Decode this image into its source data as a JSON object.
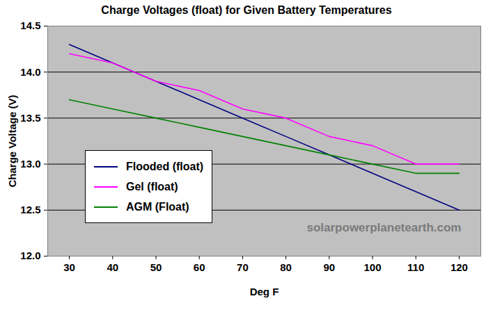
{
  "chart_data": {
    "type": "line",
    "title": "Charge Voltages (float) for Given Battery Temperatures",
    "x_label": "Deg F",
    "y_label": "Charge Voltage (V)",
    "x": [
      30,
      40,
      50,
      60,
      70,
      80,
      90,
      100,
      110,
      120
    ],
    "series": [
      {
        "name": "Flooded (float)",
        "color": "#000080",
        "values": [
          14.3,
          14.1,
          13.9,
          13.7,
          13.5,
          13.3,
          13.1,
          12.9,
          12.7,
          12.5
        ]
      },
      {
        "name": "Gel (float)",
        "color": "#ff00ff",
        "values": [
          14.2,
          14.1,
          13.9,
          13.8,
          13.6,
          13.5,
          13.3,
          13.2,
          13.0,
          13.0
        ]
      },
      {
        "name": "AGM (Float)",
        "color": "#008000",
        "values": [
          13.7,
          13.6,
          13.5,
          13.4,
          13.3,
          13.2,
          13.1,
          13.0,
          12.9,
          12.9
        ]
      }
    ],
    "xlim": [
      25,
      125
    ],
    "xticks": [
      30,
      40,
      50,
      60,
      70,
      80,
      90,
      100,
      110,
      120
    ],
    "ylim": [
      12.0,
      14.5
    ],
    "yticks": [
      {
        "value": 12.0,
        "label": "12.0"
      },
      12.5,
      {
        "value": 13.0,
        "label": "13.0"
      },
      13.5,
      {
        "value": 14.0,
        "label": "14.0"
      },
      14.5
    ],
    "grid": "y",
    "legend": "lower left",
    "annotations": [
      "solarpowerplanetearth.com"
    ]
  }
}
